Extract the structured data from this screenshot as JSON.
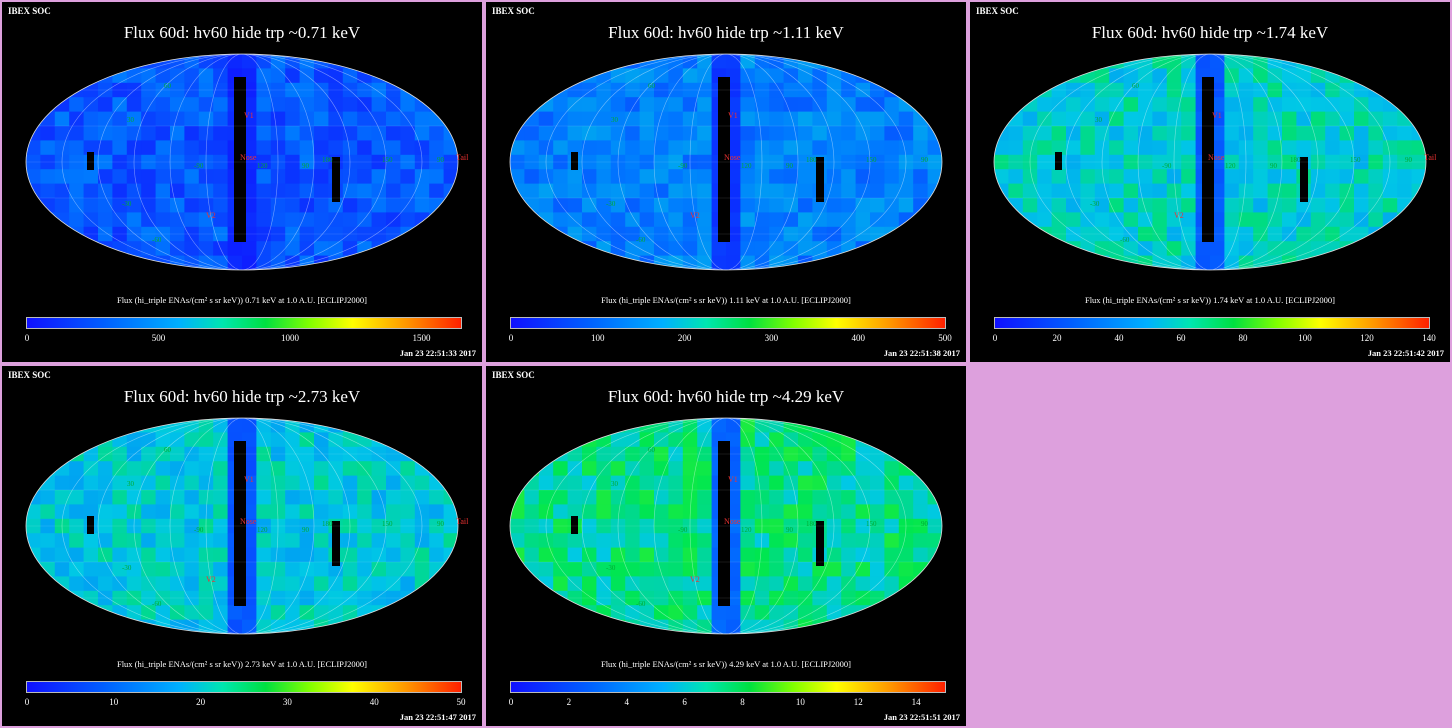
{
  "source_label": "IBEX SOC",
  "marker_labels": {
    "v1": "V1",
    "v2": "V2",
    "nose": "Nose",
    "tail": "Tail"
  },
  "panels": [
    {
      "title": "Flux   60d: hv60 hide trp ~0.71 keV",
      "colorbar_label": "Flux (hi_triple ENAs/(cm² s sr keV))  0.71 keV at 1.0 A.U. [ECLIPJ2000]",
      "ticks": [
        "0",
        "500",
        "1000",
        "1500"
      ],
      "tick_values": [
        0,
        500,
        1000,
        1500
      ],
      "scale_max": 1650,
      "timestamp": "Jan 23 22:51:33 2017",
      "tint": 0.08,
      "grid_labels": [
        "60",
        "30",
        "-90",
        "90",
        "120",
        "180",
        "150",
        "-30",
        "-60",
        "90"
      ],
      "show_tail": true
    },
    {
      "title": "Flux   60d: hv60 hide trp ~1.11 keV",
      "colorbar_label": "Flux (hi_triple ENAs/(cm² s sr keV))  1.11 keV at 1.0 A.U. [ECLIPJ2000]",
      "ticks": [
        "0",
        "100",
        "200",
        "300",
        "400",
        "500"
      ],
      "tick_values": [
        0,
        100,
        200,
        300,
        400,
        500
      ],
      "scale_max": 500,
      "timestamp": "Jan 23 22:51:38 2017",
      "tint": 0.18,
      "grid_labels": [
        "60",
        "30",
        "-90",
        "90",
        "120",
        "180",
        "150",
        "-30",
        "-60",
        "90"
      ],
      "show_tail": false
    },
    {
      "title": "Flux   60d: hv60 hide trp ~1.74 keV",
      "colorbar_label": "Flux (hi_triple ENAs/(cm² s sr keV))  1.74 keV at 1.0 A.U. [ECLIPJ2000]",
      "ticks": [
        "0",
        "20",
        "40",
        "60",
        "80",
        "100",
        "120",
        "140"
      ],
      "tick_values": [
        0,
        20,
        40,
        60,
        80,
        100,
        120,
        140
      ],
      "scale_max": 140,
      "timestamp": "Jan 23 22:51:42 2017",
      "tint": 0.38,
      "grid_labels": [
        "60",
        "30",
        "-90",
        "90",
        "120",
        "180",
        "150",
        "-30",
        "-60",
        "90"
      ],
      "show_tail": true
    },
    {
      "title": "Flux   60d: hv60 hide trp ~2.73 keV",
      "colorbar_label": "Flux (hi_triple ENAs/(cm² s sr keV))  2.73 keV at 1.0 A.U. [ECLIPJ2000]",
      "ticks": [
        "0",
        "10",
        "20",
        "30",
        "40",
        "50"
      ],
      "tick_values": [
        0,
        10,
        20,
        30,
        40,
        50
      ],
      "scale_max": 50,
      "timestamp": "Jan 23 22:51:47 2017",
      "tint": 0.36,
      "grid_labels": [
        "60",
        "30",
        "-90",
        "90",
        "120",
        "180",
        "150",
        "-30",
        "-60",
        "90"
      ],
      "show_tail": true
    },
    {
      "title": "Flux   60d: hv60 hide trp ~4.29 keV",
      "colorbar_label": "Flux (hi_triple ENAs/(cm² s sr keV))  4.29 keV at 1.0 A.U. [ECLIPJ2000]",
      "ticks": [
        "0",
        "2",
        "4",
        "6",
        "8",
        "10",
        "12",
        "14"
      ],
      "tick_values": [
        0,
        2,
        4,
        6,
        8,
        10,
        12,
        14
      ],
      "scale_max": 15,
      "timestamp": "Jan 23 22:51:51 2017",
      "tint": 0.45,
      "grid_labels": [
        "60",
        "30",
        "-90",
        "90",
        "120",
        "180",
        "150",
        "-30",
        "-60",
        "90"
      ],
      "show_tail": false
    }
  ]
}
